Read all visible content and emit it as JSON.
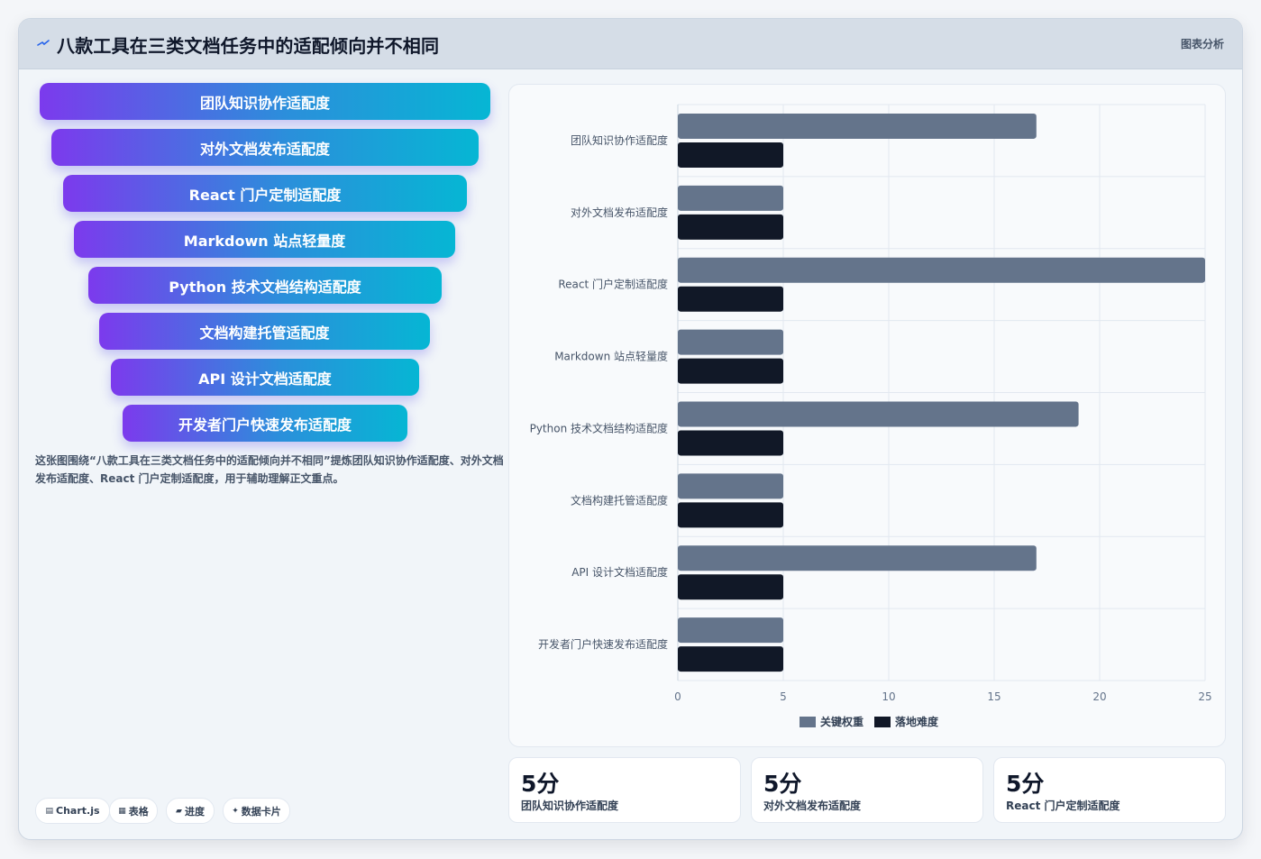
{
  "header": {
    "title": "八款工具在三类文档任务中的适配倾向并不相同",
    "tag": "图表分析"
  },
  "funnel": [
    "团队知识协作适配度",
    "对外文档发布适配度",
    "React 门户定制适配度",
    "Markdown 站点轻量度",
    "Python 技术文档结构适配度",
    "文档构建托管适配度",
    "API 设计文档适配度",
    "开发者门户快速发布适配度"
  ],
  "description": "这张图围绕“八款工具在三类文档任务中的适配倾向并不相同”提炼团队知识协作适配度、对外文档发布适配度、React 门户定制适配度，用于辅助理解正文重点。",
  "chips": [
    {
      "icon": "▤",
      "icon_name": "chart-icon",
      "label": "Chart.js"
    },
    {
      "icon": "▦",
      "icon_name": "table-icon",
      "label": "表格"
    },
    {
      "icon": "▰",
      "icon_name": "progress-icon",
      "label": "进度"
    },
    {
      "icon": "✦",
      "icon_name": "sparkle-icon",
      "label": "数据卡片"
    }
  ],
  "chart_data": {
    "type": "bar",
    "orientation": "horizontal",
    "categories": [
      "团队知识协作适配度",
      "对外文档发布适配度",
      "React 门户定制适配度",
      "Markdown 站点轻量度",
      "Python 技术文档结构适配度",
      "文档构建托管适配度",
      "API 设计文档适配度",
      "开发者门户快速发布适配度"
    ],
    "series": [
      {
        "name": "关键权重",
        "color": "#64748b",
        "values": [
          17,
          5,
          25,
          5,
          19,
          5,
          17,
          5
        ]
      },
      {
        "name": "落地难度",
        "color": "#111827",
        "values": [
          5,
          5,
          5,
          5,
          5,
          5,
          5,
          5
        ]
      }
    ],
    "xlim": [
      0,
      25
    ],
    "xticks": [
      0,
      5,
      10,
      15,
      20,
      25
    ],
    "grid": true,
    "legend": "bottom"
  },
  "stats": [
    {
      "value": "5分",
      "label": "团队知识协作适配度"
    },
    {
      "value": "5分",
      "label": "对外文档发布适配度"
    },
    {
      "value": "5分",
      "label": "React 门户定制适配度"
    }
  ]
}
